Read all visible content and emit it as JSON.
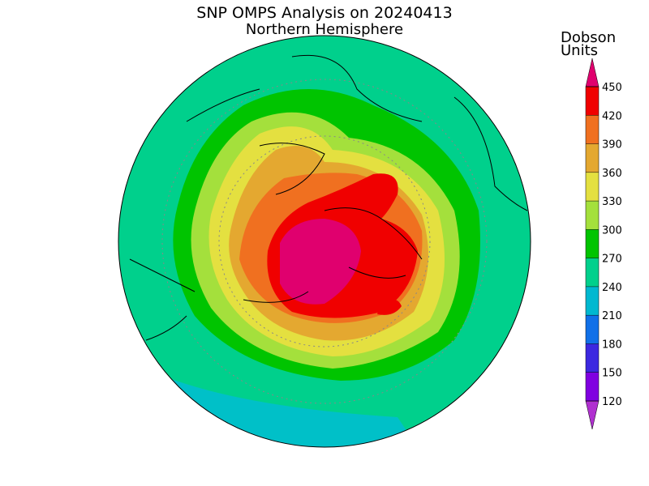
{
  "title": "SNP OMPS Analysis on 20240413",
  "subtitle": "Northern Hemisphere",
  "legend": {
    "title": [
      "Dobson",
      "Units"
    ],
    "ticks": [
      120,
      150,
      180,
      210,
      240,
      270,
      300,
      330,
      360,
      390,
      420,
      450
    ],
    "colors": [
      "#b030d0",
      "#8000e0",
      "#3c28e0",
      "#1070e8",
      "#00b8d0",
      "#00d08c",
      "#00c400",
      "#a4e03c",
      "#e4e040",
      "#e4a830",
      "#f07020",
      "#f00000",
      "#e0006e"
    ]
  }
}
